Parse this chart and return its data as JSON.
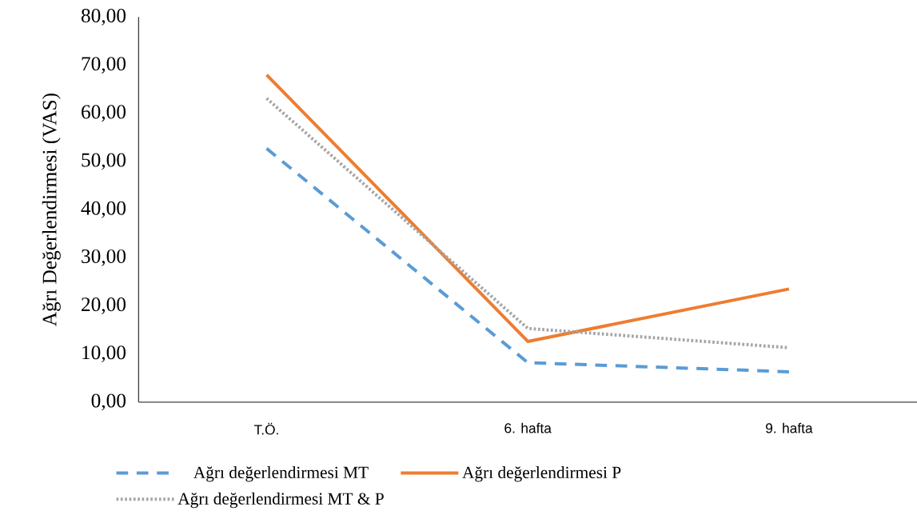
{
  "chart_data": {
    "type": "line",
    "ylabel": "Ağrı Değerlendirmesi (VAS)",
    "categories": [
      "T.Ö.",
      "6. hafta",
      "9. hafta"
    ],
    "series": [
      {
        "name": "Ağrı değerlendirmesi MT",
        "color": "#5b9bd5",
        "line_style": "dashed",
        "values": [
          52.7,
          8.2,
          6.3
        ]
      },
      {
        "name": "Ağrı değerlendirmesi P",
        "color": "#ed7d31",
        "line_style": "solid",
        "values": [
          68.0,
          12.6,
          23.5
        ]
      },
      {
        "name": "Ağrı değerlendirmesi MT & P",
        "color": "#a5a5a5",
        "line_style": "dotted",
        "values": [
          63.1,
          15.3,
          11.3
        ]
      }
    ],
    "ylim": [
      0,
      80
    ],
    "yticks": [
      {
        "value": 0,
        "label": "0,00"
      },
      {
        "value": 10,
        "label": "10,00"
      },
      {
        "value": 20,
        "label": "20,00"
      },
      {
        "value": 30,
        "label": "30,00"
      },
      {
        "value": 40,
        "label": "40,00"
      },
      {
        "value": 50,
        "label": "50,00"
      },
      {
        "value": 60,
        "label": "60,00"
      },
      {
        "value": 70,
        "label": "70,00"
      },
      {
        "value": 80,
        "label": "80,00"
      }
    ],
    "grid": false,
    "legend": "bottom"
  }
}
